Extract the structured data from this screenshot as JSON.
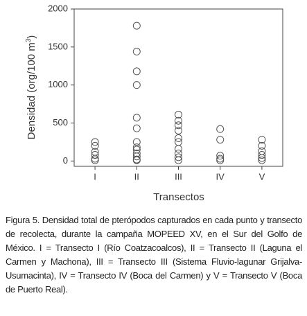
{
  "chart_data": {
    "type": "scatter",
    "ylabel_parts": [
      "Densidad (org/100 m",
      "3",
      ")"
    ],
    "xlabel": "Transectos",
    "categories": [
      "I",
      "II",
      "III",
      "IV",
      "V"
    ],
    "values": [
      [
        250,
        200,
        120,
        80,
        30,
        10
      ],
      [
        1780,
        1440,
        1180,
        1000,
        570,
        430,
        250,
        180,
        150,
        100,
        60,
        20,
        10
      ],
      [
        610,
        530,
        470,
        400,
        300,
        250,
        160,
        100,
        50,
        10
      ],
      [
        420,
        280,
        70,
        30,
        10
      ],
      [
        280,
        200,
        130,
        80,
        40,
        10
      ]
    ],
    "ylim": [
      -70,
      2000
    ],
    "yticks": [
      0,
      500,
      1000,
      1500,
      2000
    ],
    "color": "#555555"
  },
  "caption": "Figura 5. Densidad total de pterópodos capturados en cada punto y transecto de recolecta, durante la campaña MOPEED XV, en el Sur del Golfo de México. I = Transecto I (Río Coatzacoalcos), II = Transecto II (Laguna el Carmen y Machona), III = Transecto III (Sistema Fluvio-lagunar Grijalva-Usumacinta), IV = Transecto IV (Boca del Carmen) y V = Transecto V (Boca de Puerto Real)."
}
